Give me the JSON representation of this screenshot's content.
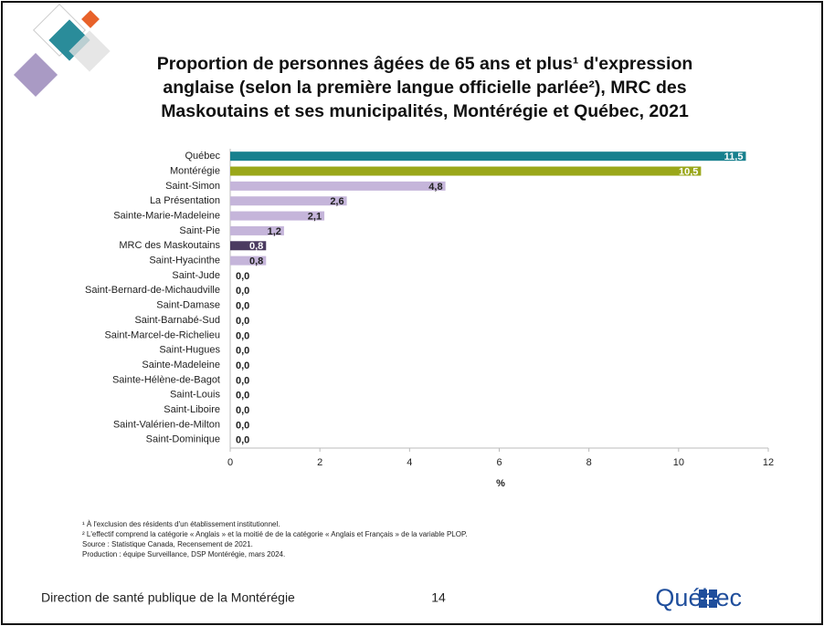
{
  "chart_data": {
    "type": "hbar",
    "title": "Proportion de personnes âgées de 65 ans et plus¹ d'expression anglaise (selon la première langue officielle parlée²), MRC des Maskoutains et ses municipalités, Montérégie et Québec, 2021",
    "categories": [
      "Québec",
      "Montérégie",
      "Saint-Simon",
      "La Présentation",
      "Sainte-Marie-Madeleine",
      "Saint-Pie",
      "MRC des Maskoutains",
      "Saint-Hyacinthe",
      "Saint-Jude",
      "Saint-Bernard-de-Michaudville",
      "Saint-Damase",
      "Saint-Barnabé-Sud",
      "Saint-Marcel-de-Richelieu",
      "Saint-Hugues",
      "Sainte-Madeleine",
      "Sainte-Hélène-de-Bagot",
      "Saint-Louis",
      "Saint-Liboire",
      "Saint-Valérien-de-Milton",
      "Saint-Dominique"
    ],
    "values": [
      11.5,
      10.5,
      4.8,
      2.6,
      2.1,
      1.2,
      0.8,
      0.8,
      0,
      0,
      0,
      0,
      0,
      0,
      0,
      0,
      0,
      0,
      0,
      0
    ],
    "value_labels": [
      "11,5",
      "10,5",
      "4,8",
      "2,6",
      "2,1",
      "1,2",
      "0,8",
      "0,8",
      "0,0",
      "0,0",
      "0,0",
      "0,0",
      "0,0",
      "0,0",
      "0,0",
      "0,0",
      "0,0",
      "0,0",
      "0,0",
      "0,0"
    ],
    "colors": [
      "#17808e",
      "#9aa71a",
      "#c5b5da",
      "#c5b5da",
      "#c5b5da",
      "#c5b5da",
      "#4b3b60",
      "#c5b5da",
      "#c5b5da",
      "#c5b5da",
      "#c5b5da",
      "#c5b5da",
      "#c5b5da",
      "#c5b5da",
      "#c5b5da",
      "#c5b5da",
      "#c5b5da",
      "#c5b5da",
      "#c5b5da",
      "#c5b5da"
    ],
    "xlim": [
      0,
      12
    ],
    "xticks": [
      0,
      2,
      4,
      6,
      8,
      10,
      12
    ],
    "xlabel": "%",
    "grid": false
  },
  "footnotes": [
    "¹ À l'exclusion des résidents d'un établissement institutionnel.",
    "² L'effectif comprend la catégorie « Anglais » et la moitié de de la catégorie « Anglais et Français » de la variable PLOP.",
    "Source : Statistique Canada, Recensement de 2021.",
    "Production : équipe Surveillance, DSP Montérégie, mars 2024."
  ],
  "footer": {
    "organization": "Direction de santé publique de la Montérégie",
    "page": "14",
    "logo": "Québec"
  }
}
